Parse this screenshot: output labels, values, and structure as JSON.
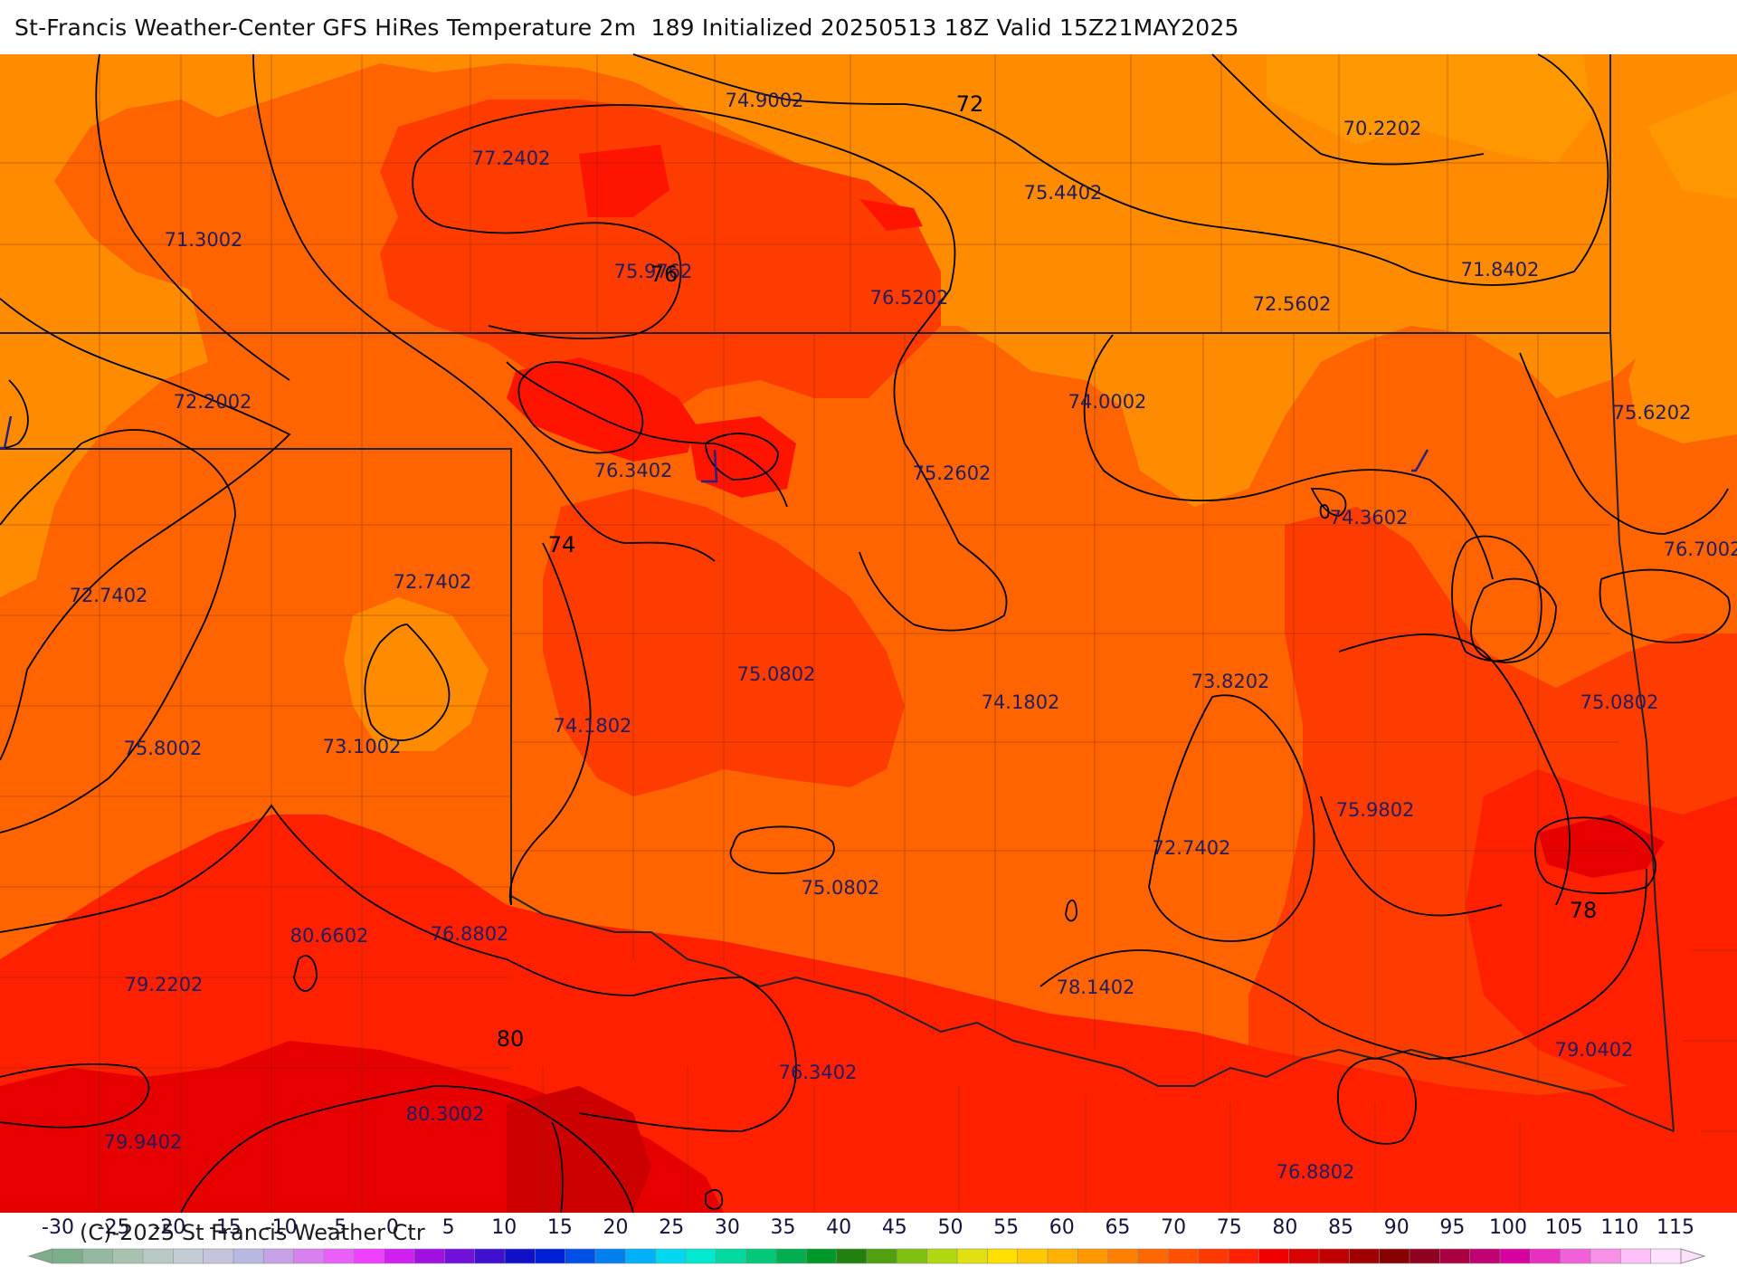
{
  "title": "St-Francis Weather-Center GFS HiRes Temperature 2m  189 Initialized 20250513 18Z Valid 15Z21MAY2025",
  "copyright": "(C)-2025 St Francis Weather Ctr",
  "colors": {
    "band_70_75": "#ff8c00",
    "band_75_80": "#ff6400",
    "band_80_85": "#ff3c00",
    "band_85_90": "#ff1400",
    "band_90_95": "#e60000",
    "band_95_100": "#cd0000",
    "contour_line": "#000000",
    "label_text": "#241c5e"
  },
  "point_values": [
    "74.9002",
    "77.2402",
    "71.3002",
    "75.9762",
    "76.5202",
    "75.4402",
    "70.2202",
    "71.8402",
    "72.5602",
    "72.2002",
    "76.3402",
    "75.2602",
    "74.0002",
    "75.6202",
    "74.3602",
    "76.7002",
    "72.7402",
    "72.7402",
    "75.0802",
    "73.8202",
    "74.1802",
    "74.1802",
    "75.8002",
    "73.1002",
    "75.0802",
    "75.9802",
    "72.7402",
    "75.0802",
    "80.6602",
    "76.8802",
    "79.2202",
    "78.1402",
    "79.0402",
    "76.3402",
    "80.3002",
    "79.9402",
    "76.8802"
  ],
  "contour_labels": [
    "72",
    "76",
    "74",
    "78",
    "80"
  ],
  "colorbar": {
    "ticks": [
      "-30",
      "-25",
      "-20",
      "-15",
      "-10",
      "-5",
      "0",
      "5",
      "10",
      "15",
      "20",
      "25",
      "30",
      "35",
      "40",
      "45",
      "50",
      "55",
      "60",
      "65",
      "70",
      "75",
      "80",
      "85",
      "90",
      "95",
      "100",
      "105",
      "110",
      "115"
    ],
    "colors": [
      "#7cae8a",
      "#94b8a0",
      "#a8c2b0",
      "#b8c8c4",
      "#c4ccd4",
      "#c4c4dc",
      "#b8b8e0",
      "#c8a0e8",
      "#d880f0",
      "#e860f8",
      "#f040ff",
      "#d020f0",
      "#a010e0",
      "#7010d8",
      "#4010d0",
      "#1010c8",
      "#0020d8",
      "#0050e8",
      "#0080f0",
      "#00b0f8",
      "#00d8f0",
      "#00e8d0",
      "#00d8a0",
      "#00c878",
      "#00b050",
      "#009828",
      "#208010",
      "#50a010",
      "#80c010",
      "#b0d810",
      "#e0e010",
      "#ffe000",
      "#ffc800",
      "#ffb000",
      "#ff9800",
      "#ff8000",
      "#ff6800",
      "#ff5000",
      "#ff3800",
      "#ff2000",
      "#f00000",
      "#d80000",
      "#c00000",
      "#a00000",
      "#880000",
      "#900020",
      "#a80040",
      "#c00070",
      "#d800a0",
      "#e830c0",
      "#f060d8",
      "#f890e8",
      "#ffc0f8",
      "#ffe0ff"
    ]
  }
}
